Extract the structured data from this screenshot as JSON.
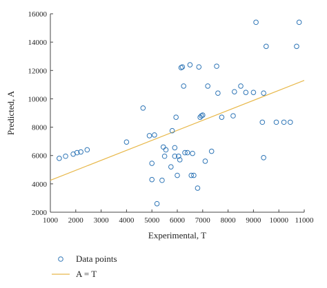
{
  "chart_data": {
    "type": "scatter",
    "title": "",
    "xlabel": "Experimental, T",
    "ylabel": "Predicted, A",
    "xlim": [
      1000,
      11000
    ],
    "ylim": [
      2000,
      16000
    ],
    "xticks": [
      1000,
      2000,
      3000,
      4000,
      5000,
      6000,
      7000,
      8000,
      9000,
      10000,
      11000
    ],
    "yticks": [
      2000,
      4000,
      6000,
      8000,
      10000,
      12000,
      14000,
      16000
    ],
    "grid": false,
    "legend_position": "bottom-left",
    "colors": {
      "points": "#2e75b6",
      "fit_line": "#e8b84a",
      "axis": "#444444"
    },
    "series": [
      {
        "name": "Data points",
        "marker": "open-circle",
        "x": [
          1350,
          1600,
          1900,
          2050,
          2200,
          2450,
          4000,
          4650,
          4900,
          5000,
          5000,
          5100,
          5200,
          5400,
          5450,
          5500,
          5550,
          5750,
          5800,
          5900,
          5900,
          5950,
          6000,
          6050,
          6100,
          6150,
          6200,
          6250,
          6300,
          6400,
          6500,
          6550,
          6600,
          6650,
          6800,
          6850,
          6900,
          6950,
          7000,
          7100,
          7200,
          7350,
          7550,
          7600,
          7750,
          8200,
          8250,
          8500,
          8700,
          9000,
          9100,
          9350,
          9400,
          9400,
          9500,
          9900,
          10200,
          10450,
          10700,
          10800
        ],
        "y": [
          5800,
          5950,
          6100,
          6200,
          6250,
          6400,
          6950,
          9350,
          7400,
          5450,
          4300,
          7450,
          2600,
          4250,
          6600,
          5950,
          6400,
          5200,
          7750,
          6550,
          5950,
          8700,
          4600,
          5950,
          5700,
          12200,
          12250,
          10900,
          6200,
          6200,
          12400,
          4600,
          6150,
          4600,
          3700,
          12250,
          8700,
          8800,
          8850,
          5600,
          10900,
          6300,
          12300,
          10400,
          8700,
          8800,
          10500,
          10900,
          10450,
          10450,
          15400,
          8350,
          5850,
          10400,
          13700,
          8350,
          8350,
          8350,
          13700,
          15400
        ]
      },
      {
        "name": "A = T",
        "type": "line",
        "x": [
          1000,
          11000
        ],
        "y": [
          4250,
          11300
        ]
      }
    ]
  }
}
